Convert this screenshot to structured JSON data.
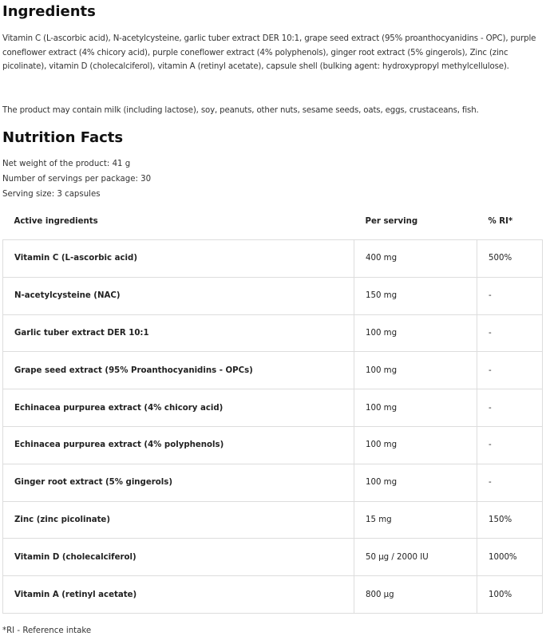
{
  "ingredients": {
    "title": "Ingredients",
    "text": "Vitamin C (L-ascorbic acid), N-acetylcysteine, garlic tuber extract DER 10:1, grape seed extract (95% proanthocyanidins - OPC), purple coneflower extract (4% chicory acid), purple coneflower extract (4% polyphenols), ginger root extract (5% gingerols), Zinc (zinc picolinate), vitamin D (cholecalciferol), vitamin A (retinyl acetate), capsule shell (bulking agent: hydroxypropyl methylcellulose).",
    "allergens": "The product may contain milk (including lactose), soy, peanuts, other nuts, sesame seeds, oats, eggs, crustaceans, fish."
  },
  "nutrition": {
    "title": "Nutrition Facts",
    "net_weight": "Net weight of the product: 41 g",
    "servings": "Number of servings per package: 30",
    "serving_size": "Serving size: 3 capsules",
    "headers": [
      "Active ingredients",
      "Per serving",
      "% RI*"
    ],
    "rows": [
      [
        "Vitamin C (L-ascorbic acid)",
        "400 mg",
        "500%"
      ],
      [
        "N-acetylcysteine (NAC)",
        "150 mg",
        "-"
      ],
      [
        "Garlic tuber extract DER 10:1",
        "100 mg",
        "-"
      ],
      [
        "Grape seed extract (95% Proanthocyanidins - OPCs)",
        "100 mg",
        "-"
      ],
      [
        "Echinacea purpurea extract (4% chicory acid)",
        "100 mg",
        "-"
      ],
      [
        "Echinacea purpurea extract (4% polyphenols)",
        "100 mg",
        "-"
      ],
      [
        "Ginger root extract (5% gingerols)",
        "100 mg",
        "-"
      ],
      [
        "Zinc (zinc picolinate)",
        "15 mg",
        "150%"
      ],
      [
        "Vitamin D (cholecalciferol)",
        "50 µg / 2000 IU",
        "1000%"
      ],
      [
        "Vitamin A (retinyl acetate)",
        "800 µg",
        "100%"
      ]
    ],
    "footnote": "*RI - Reference intake"
  }
}
